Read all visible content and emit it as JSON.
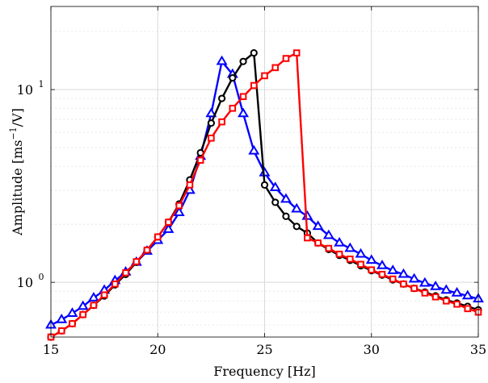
{
  "chart_data": {
    "type": "line",
    "xlabel": "Frequency [Hz]",
    "ylabel_main": "Amplitude [ms",
    "ylabel_sup": "−1",
    "ylabel_tail": "/V]",
    "xlim": [
      15,
      35
    ],
    "ylim": [
      0.52,
      27
    ],
    "yscale": "log",
    "grid": true,
    "x_ticks": [
      15,
      20,
      25,
      30,
      35
    ],
    "x_tick_labels": [
      "15",
      "20",
      "25",
      "30",
      "35"
    ],
    "y_ticks": [
      1,
      10
    ],
    "y_tick_labels_base": [
      "10",
      "10"
    ],
    "y_tick_labels_exp": [
      "0",
      "1"
    ],
    "series": [
      {
        "color": "#0000ff",
        "marker": "triangle",
        "x": [
          15,
          15.5,
          16,
          16.5,
          17,
          17.5,
          18,
          18.5,
          19,
          19.5,
          20,
          20.5,
          21,
          21.5,
          22,
          22.5,
          23,
          23.5,
          24,
          24.5,
          25,
          25.5,
          26,
          26.5,
          27,
          27.5,
          28,
          28.5,
          29,
          29.5,
          30,
          30.5,
          31,
          31.5,
          32,
          32.5,
          33,
          33.5,
          34,
          34.5,
          35
        ],
        "y": [
          0.6,
          0.64,
          0.69,
          0.75,
          0.83,
          0.91,
          1.02,
          1.13,
          1.27,
          1.45,
          1.65,
          1.88,
          2.3,
          3.0,
          4.5,
          7.5,
          14.0,
          12.0,
          7.5,
          4.8,
          3.7,
          3.1,
          2.7,
          2.4,
          2.2,
          1.95,
          1.75,
          1.6,
          1.5,
          1.4,
          1.3,
          1.22,
          1.15,
          1.1,
          1.04,
          0.99,
          0.95,
          0.91,
          0.88,
          0.85,
          0.82
        ]
      },
      {
        "color": "#000000",
        "marker": "circle",
        "x": [
          15,
          15.5,
          16,
          16.5,
          17,
          17.5,
          18,
          18.5,
          19,
          19.5,
          20,
          20.5,
          21,
          21.5,
          22,
          22.5,
          23,
          23.5,
          24,
          24.5,
          25,
          25.5,
          26,
          26.5,
          27,
          27.5,
          28,
          28.5,
          29,
          29.5,
          30,
          30.5,
          31,
          31.5,
          32,
          32.5,
          33,
          33.5,
          34,
          34.5,
          35
        ],
        "y": [
          0.52,
          0.56,
          0.61,
          0.68,
          0.76,
          0.85,
          0.97,
          1.1,
          1.27,
          1.47,
          1.72,
          2.05,
          2.55,
          3.4,
          4.7,
          6.7,
          9.0,
          11.5,
          14.0,
          15.5,
          3.2,
          2.6,
          2.2,
          1.95,
          1.8,
          1.6,
          1.48,
          1.38,
          1.3,
          1.22,
          1.15,
          1.09,
          1.03,
          0.98,
          0.93,
          0.89,
          0.85,
          0.81,
          0.78,
          0.75,
          0.72
        ]
      },
      {
        "color": "#ff0000",
        "marker": "square",
        "x": [
          15,
          15.5,
          16,
          16.5,
          17,
          17.5,
          18,
          18.5,
          19,
          19.5,
          20,
          20.5,
          21,
          21.5,
          22,
          22.5,
          23,
          23.5,
          24,
          24.5,
          25,
          25.5,
          26,
          26.5,
          27,
          27.5,
          28,
          28.5,
          29,
          29.5,
          30,
          30.5,
          31,
          31.5,
          32,
          32.5,
          33,
          33.5,
          34,
          34.5,
          35
        ],
        "y": [
          0.52,
          0.56,
          0.61,
          0.68,
          0.76,
          0.86,
          0.98,
          1.12,
          1.28,
          1.47,
          1.72,
          2.05,
          2.5,
          3.2,
          4.3,
          5.6,
          6.8,
          8.0,
          9.2,
          10.5,
          11.8,
          13.0,
          14.5,
          15.5,
          1.7,
          1.6,
          1.5,
          1.4,
          1.32,
          1.24,
          1.16,
          1.1,
          1.04,
          0.98,
          0.93,
          0.88,
          0.84,
          0.8,
          0.77,
          0.73,
          0.7
        ]
      }
    ]
  }
}
